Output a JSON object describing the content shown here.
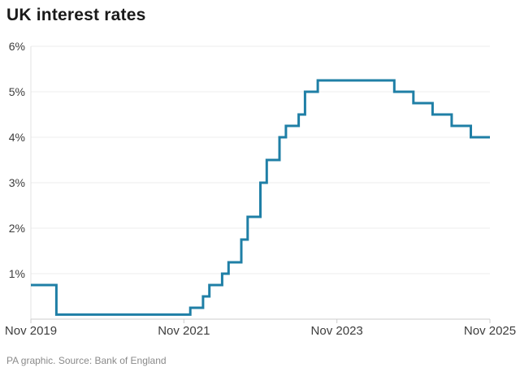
{
  "chart_data": {
    "type": "line",
    "subtype": "step-after",
    "title": "UK interest rates",
    "source_note": "PA graphic. Source: Bank of England",
    "unit": "%",
    "ylim": [
      0,
      6
    ],
    "xlim_months": [
      0,
      72
    ],
    "grid": "horizontal-only",
    "legend": "none",
    "line_color": "#1f7fa6",
    "grid_color": "#ededed",
    "axis_color": "#cdcdcd",
    "side_axis_color": "#e3e3e3",
    "y_ticks": [
      {
        "value": 1,
        "label": "1%"
      },
      {
        "value": 2,
        "label": "2%"
      },
      {
        "value": 3,
        "label": "3%"
      },
      {
        "value": 4,
        "label": "4%"
      },
      {
        "value": 5,
        "label": "5%"
      },
      {
        "value": 6,
        "label": "6%"
      }
    ],
    "x_ticks": [
      {
        "month": 0,
        "label": "Nov 2019"
      },
      {
        "month": 24,
        "label": "Nov 2021"
      },
      {
        "month": 48,
        "label": "Nov 2023"
      },
      {
        "month": 72,
        "label": "Nov 2025"
      }
    ],
    "points": [
      {
        "date": "Nov 2019",
        "month": 0,
        "value": 0.75
      },
      {
        "date": "Mar 2020",
        "month": 4,
        "value": 0.1
      },
      {
        "date": "Dec 2021",
        "month": 25,
        "value": 0.25
      },
      {
        "date": "Feb 2022",
        "month": 27,
        "value": 0.5
      },
      {
        "date": "Mar 2022",
        "month": 28,
        "value": 0.75
      },
      {
        "date": "May 2022",
        "month": 30,
        "value": 1.0
      },
      {
        "date": "Jun 2022",
        "month": 31,
        "value": 1.25
      },
      {
        "date": "Aug 2022",
        "month": 33,
        "value": 1.75
      },
      {
        "date": "Sep 2022",
        "month": 34,
        "value": 2.25
      },
      {
        "date": "Nov 2022",
        "month": 36,
        "value": 3.0
      },
      {
        "date": "Dec 2022",
        "month": 37,
        "value": 3.5
      },
      {
        "date": "Feb 2023",
        "month": 39,
        "value": 4.0
      },
      {
        "date": "Mar 2023",
        "month": 40,
        "value": 4.25
      },
      {
        "date": "May 2023",
        "month": 42,
        "value": 4.5
      },
      {
        "date": "Jun 2023",
        "month": 43,
        "value": 5.0
      },
      {
        "date": "Aug 2023",
        "month": 45,
        "value": 5.25
      },
      {
        "date": "Aug 2024",
        "month": 57,
        "value": 5.0
      },
      {
        "date": "Nov 2024",
        "month": 60,
        "value": 4.75
      },
      {
        "date": "Feb 2025",
        "month": 63,
        "value": 4.5
      },
      {
        "date": "May 2025",
        "month": 66,
        "value": 4.25
      },
      {
        "date": "Aug 2025",
        "month": 69,
        "value": 4.0
      },
      {
        "date": "Nov 2025",
        "month": 72,
        "value": 4.0
      }
    ]
  }
}
